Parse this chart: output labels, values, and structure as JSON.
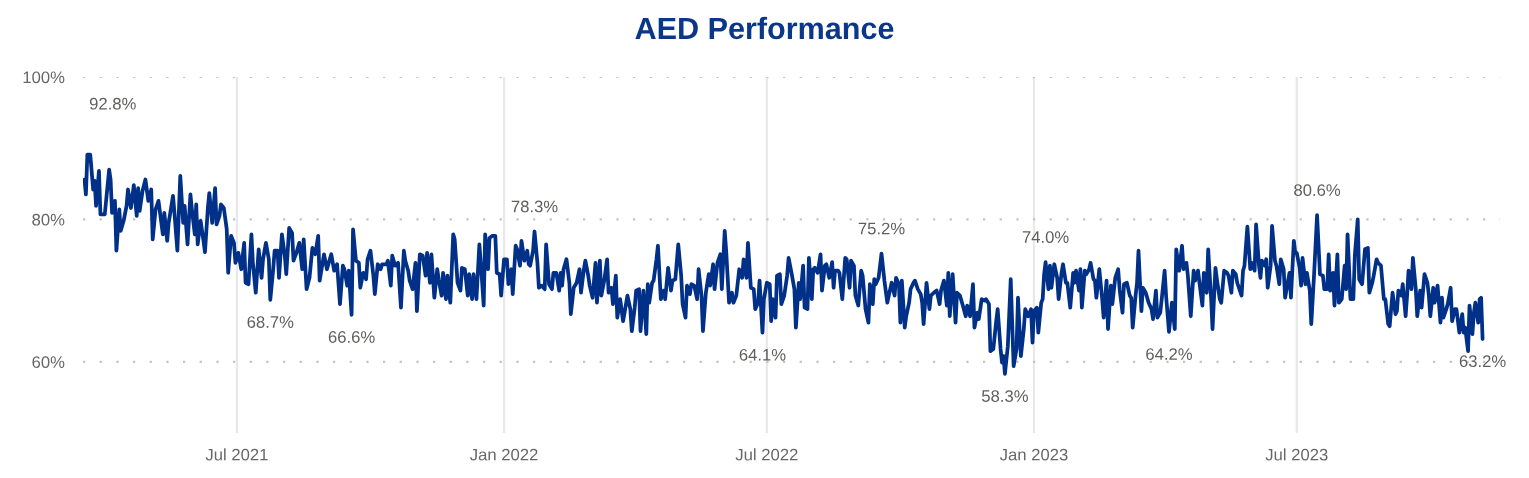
{
  "chart_data": {
    "type": "line",
    "title": "AED Performance",
    "x": [
      "2021-03-18",
      "2021-03-19",
      "2021-03-20",
      "2021-03-22",
      "2021-03-24",
      "2021-03-25",
      "2021-03-26",
      "2021-03-28",
      "2021-03-29",
      "2021-04-01",
      "2021-04-04",
      "2021-04-05",
      "2021-04-06",
      "2021-04-08",
      "2021-04-09",
      "2021-04-11",
      "2021-04-12",
      "2021-04-14",
      "2021-04-16",
      "2021-04-17",
      "2021-04-19",
      "2021-04-21",
      "2021-04-23",
      "2021-04-24",
      "2021-04-25",
      "2021-04-27",
      "2021-04-29",
      "2021-05-01",
      "2021-05-03",
      "2021-05-04",
      "2021-05-06",
      "2021-05-08",
      "2021-05-11",
      "2021-05-12",
      "2021-05-14",
      "2021-05-15",
      "2021-05-18",
      "2021-05-19",
      "2021-05-21",
      "2021-05-23",
      "2021-05-25",
      "2021-05-26",
      "2021-05-28",
      "2021-05-30",
      "2021-05-31",
      "2021-06-02",
      "2021-06-03",
      "2021-06-04",
      "2021-06-06",
      "2021-06-08",
      "2021-06-09",
      "2021-06-11",
      "2021-06-12",
      "2021-06-14",
      "2021-06-16",
      "2021-06-17",
      "2021-06-19",
      "2021-06-20",
      "2021-06-22",
      "2021-06-24",
      "2021-06-25",
      "2021-06-27",
      "2021-06-29",
      "2021-06-30",
      "2021-07-02",
      "2021-07-04",
      "2021-07-06",
      "2021-07-07",
      "2021-07-09",
      "2021-07-11",
      "2021-07-12",
      "2021-07-14",
      "2021-07-16",
      "2021-07-18",
      "2021-07-19",
      "2021-07-21",
      "2021-07-23",
      "2021-07-24",
      "2021-07-26",
      "2021-07-27",
      "2021-07-29",
      "2021-07-30",
      "2021-08-01",
      "2021-08-03",
      "2021-08-04",
      "2021-08-06",
      "2021-08-08",
      "2021-08-09",
      "2021-08-11",
      "2021-08-13",
      "2021-08-15",
      "2021-08-16",
      "2021-08-18",
      "2021-08-20",
      "2021-08-22",
      "2021-08-24",
      "2021-08-26",
      "2021-08-27",
      "2021-08-30",
      "2021-09-01",
      "2021-09-03",
      "2021-09-04",
      "2021-09-06",
      "2021-09-08",
      "2021-09-10",
      "2021-09-12",
      "2021-09-13",
      "2021-09-15",
      "2021-09-16",
      "2021-09-18",
      "2021-09-19",
      "2021-09-21",
      "2021-09-23",
      "2021-09-24",
      "2021-09-26",
      "2021-09-28",
      "2021-09-29",
      "2021-10-01",
      "2021-10-03",
      "2021-10-04",
      "2021-10-06",
      "2021-10-08",
      "2021-10-09",
      "2021-10-12",
      "2021-10-13",
      "2021-10-15",
      "2021-10-16",
      "2021-10-18",
      "2021-10-20",
      "2021-10-22",
      "2021-10-24",
      "2021-10-25",
      "2021-10-27",
      "2021-10-28",
      "2021-10-30",
      "2021-11-01",
      "2021-11-02",
      "2021-11-04",
      "2021-11-06",
      "2021-11-08",
      "2021-11-09",
      "2021-11-11",
      "2021-11-12",
      "2021-11-14",
      "2021-11-16",
      "2021-11-17",
      "2021-11-19",
      "2021-11-20",
      "2021-11-22",
      "2021-11-23",
      "2021-11-25",
      "2021-11-27",
      "2021-11-28",
      "2021-11-30",
      "2021-12-02",
      "2021-12-03",
      "2021-12-05",
      "2021-12-07",
      "2021-12-08",
      "2021-12-10",
      "2021-12-11",
      "2021-12-13",
      "2021-12-15",
      "2021-12-16",
      "2021-12-18",
      "2021-12-19",
      "2021-12-21",
      "2021-12-22",
      "2021-12-24",
      "2021-12-26",
      "2021-12-27",
      "2021-12-29",
      "2021-12-30",
      "2022-01-01",
      "2022-01-03",
      "2022-01-04",
      "2022-01-06",
      "2022-01-07",
      "2022-01-09",
      "2022-01-10",
      "2022-01-12",
      "2022-01-13",
      "2022-01-15",
      "2022-01-17",
      "2022-01-18",
      "2022-01-19",
      "2022-01-21",
      "2022-01-22",
      "2022-01-24",
      "2022-01-25",
      "2022-01-27",
      "2022-01-29",
      "2022-01-30",
      "2022-02-01",
      "2022-02-03",
      "2022-02-04",
      "2022-02-06",
      "2022-02-08",
      "2022-02-09",
      "2022-02-10",
      "2022-02-11",
      "2022-02-13",
      "2022-02-15",
      "2022-02-16",
      "2022-02-18",
      "2022-02-20",
      "2022-02-22",
      "2022-02-23",
      "2022-02-25",
      "2022-02-26",
      "2022-02-28",
      "2022-03-01",
      "2022-03-03",
      "2022-03-05",
      "2022-03-06",
      "2022-03-08",
      "2022-03-09",
      "2022-03-11",
      "2022-03-13",
      "2022-03-14",
      "2022-03-16",
      "2022-03-17",
      "2022-03-19",
      "2022-03-20",
      "2022-03-22",
      "2022-03-24",
      "2022-03-25",
      "2022-03-27",
      "2022-03-29",
      "2022-03-30",
      "2022-04-01",
      "2022-04-02",
      "2022-04-04",
      "2022-04-05",
      "2022-04-07",
      "2022-04-09",
      "2022-04-10",
      "2022-04-11",
      "2022-04-13",
      "2022-04-14",
      "2022-04-16",
      "2022-04-17",
      "2022-04-19",
      "2022-04-21",
      "2022-04-22",
      "2022-04-24",
      "2022-04-26",
      "2022-04-27",
      "2022-04-29",
      "2022-05-01",
      "2022-05-03",
      "2022-05-04",
      "2022-05-06",
      "2022-05-07",
      "2022-05-09",
      "2022-05-10",
      "2022-05-12",
      "2022-05-14",
      "2022-05-15",
      "2022-05-17",
      "2022-05-18",
      "2022-05-20",
      "2022-05-22",
      "2022-05-23",
      "2022-05-25",
      "2022-05-26",
      "2022-05-28",
      "2022-05-30",
      "2022-05-31",
      "2022-06-02",
      "2022-06-03",
      "2022-06-05",
      "2022-06-07",
      "2022-06-08",
      "2022-06-10",
      "2022-06-12",
      "2022-06-14",
      "2022-06-15",
      "2022-06-17",
      "2022-06-18",
      "2022-06-20",
      "2022-06-22",
      "2022-06-23",
      "2022-06-25",
      "2022-06-26",
      "2022-06-28",
      "2022-06-29",
      "2022-07-01",
      "2022-07-03",
      "2022-07-04",
      "2022-07-05",
      "2022-07-07",
      "2022-07-08",
      "2022-07-10",
      "2022-07-11",
      "2022-07-13",
      "2022-07-15",
      "2022-07-16",
      "2022-07-18",
      "2022-07-20",
      "2022-07-21",
      "2022-07-23",
      "2022-07-24",
      "2022-07-26",
      "2022-07-27",
      "2022-07-29",
      "2022-07-30",
      "2022-08-01",
      "2022-08-02",
      "2022-08-03",
      "2022-08-05",
      "2022-08-07",
      "2022-08-08",
      "2022-08-10",
      "2022-08-11",
      "2022-08-13",
      "2022-08-15",
      "2022-08-16",
      "2022-08-17",
      "2022-08-19",
      "2022-08-20",
      "2022-08-22",
      "2022-08-24",
      "2022-08-25",
      "2022-08-27",
      "2022-08-28",
      "2022-08-30",
      "2022-08-31",
      "2022-09-02",
      "2022-09-04",
      "2022-09-05",
      "2022-09-07",
      "2022-09-09",
      "2022-09-10",
      "2022-09-12",
      "2022-09-13",
      "2022-09-14",
      "2022-09-16",
      "2022-09-17",
      "2022-09-18",
      "2022-09-20",
      "2022-09-22",
      "2022-09-23",
      "2022-09-25",
      "2022-09-27",
      "2022-09-28",
      "2022-09-30",
      "2022-10-01",
      "2022-10-02",
      "2022-10-04",
      "2022-10-05",
      "2022-10-07",
      "2022-10-08",
      "2022-10-10",
      "2022-10-11",
      "2022-10-13",
      "2022-10-15",
      "2022-10-16",
      "2022-10-17",
      "2022-10-19",
      "2022-10-21",
      "2022-10-22",
      "2022-10-24",
      "2022-10-26",
      "2022-10-28",
      "2022-10-29",
      "2022-10-31",
      "2022-11-02",
      "2022-11-03",
      "2022-11-04",
      "2022-11-06",
      "2022-11-08",
      "2022-11-09",
      "2022-11-11",
      "2022-11-12",
      "2022-11-13",
      "2022-11-15",
      "2022-11-16",
      "2022-11-18",
      "2022-11-20",
      "2022-11-21",
      "2022-11-23",
      "2022-11-24",
      "2022-11-26",
      "2022-11-28",
      "2022-11-29",
      "2022-12-01",
      "2022-12-02",
      "2022-12-04",
      "2022-12-06",
      "2022-12-07",
      "2022-12-09",
      "2022-12-10",
      "2022-12-11",
      "2022-12-12",
      "2022-12-14",
      "2022-12-16",
      "2022-12-17",
      "2022-12-18",
      "2022-12-20",
      "2022-12-21",
      "2022-12-23",
      "2022-12-25",
      "2022-12-26",
      "2022-12-28",
      "2022-12-30",
      "2022-12-31",
      "2023-01-01",
      "2023-01-03",
      "2023-01-04",
      "2023-01-06",
      "2023-01-07",
      "2023-01-08",
      "2023-01-09",
      "2023-01-11",
      "2023-01-12",
      "2023-01-13",
      "2023-01-15",
      "2023-01-17",
      "2023-01-18",
      "2023-01-20",
      "2023-01-21",
      "2023-01-23",
      "2023-01-24",
      "2023-01-26",
      "2023-01-28",
      "2023-01-29",
      "2023-01-30",
      "2023-02-01",
      "2023-02-02",
      "2023-02-03",
      "2023-02-05",
      "2023-02-06",
      "2023-02-08",
      "2023-02-09",
      "2023-02-11",
      "2023-02-12",
      "2023-02-13",
      "2023-02-15",
      "2023-02-17",
      "2023-02-18",
      "2023-02-20",
      "2023-02-21",
      "2023-02-23",
      "2023-02-24",
      "2023-02-26",
      "2023-02-28",
      "2023-03-01",
      "2023-03-03",
      "2023-03-04",
      "2023-03-06",
      "2023-03-08",
      "2023-03-09",
      "2023-03-10",
      "2023-03-12",
      "2023-03-13",
      "2023-03-14",
      "2023-03-16",
      "2023-03-17",
      "2023-03-19",
      "2023-03-21",
      "2023-03-23",
      "2023-03-24",
      "2023-03-26",
      "2023-03-27",
      "2023-03-29",
      "2023-03-30",
      "2023-04-01",
      "2023-04-02",
      "2023-04-04",
      "2023-04-06",
      "2023-04-08",
      "2023-04-09",
      "2023-04-11",
      "2023-04-13",
      "2023-04-14",
      "2023-04-16",
      "2023-04-17",
      "2023-04-19",
      "2023-04-21",
      "2023-04-22",
      "2023-04-24",
      "2023-04-25",
      "2023-04-27",
      "2023-04-28",
      "2023-04-30",
      "2023-05-01",
      "2023-05-03",
      "2023-05-04",
      "2023-05-06",
      "2023-05-07",
      "2023-05-09",
      "2023-05-10",
      "2023-05-12",
      "2023-05-14",
      "2023-05-15",
      "2023-05-17",
      "2023-05-18",
      "2023-05-20",
      "2023-05-21",
      "2023-05-24",
      "2023-05-25",
      "2023-05-26",
      "2023-05-28",
      "2023-05-30",
      "2023-05-31",
      "2023-06-02",
      "2023-06-03",
      "2023-06-05",
      "2023-06-06",
      "2023-06-07",
      "2023-06-09",
      "2023-06-10",
      "2023-06-11",
      "2023-06-13",
      "2023-06-14",
      "2023-06-16",
      "2023-06-17",
      "2023-06-19",
      "2023-06-20",
      "2023-06-22",
      "2023-06-23",
      "2023-06-26",
      "2023-06-27",
      "2023-06-29",
      "2023-06-30",
      "2023-07-01",
      "2023-07-03",
      "2023-07-04",
      "2023-07-05",
      "2023-07-07",
      "2023-07-08",
      "2023-07-10",
      "2023-07-11",
      "2023-07-13",
      "2023-07-15",
      "2023-07-17",
      "2023-07-19",
      "2023-07-20",
      "2023-07-22",
      "2023-07-23",
      "2023-07-24",
      "2023-07-26",
      "2023-07-27",
      "2023-07-29",
      "2023-07-30",
      "2023-08-01",
      "2023-08-03",
      "2023-08-04",
      "2023-08-05",
      "2023-08-07",
      "2023-08-09",
      "2023-08-10",
      "2023-08-12",
      "2023-08-13",
      "2023-08-15",
      "2023-08-17",
      "2023-08-19",
      "2023-08-20",
      "2023-08-22",
      "2023-08-23",
      "2023-08-25",
      "2023-08-26",
      "2023-08-28",
      "2023-08-30",
      "2023-08-31",
      "2023-09-02",
      "2023-09-03",
      "2023-09-05",
      "2023-09-07",
      "2023-09-08",
      "2023-09-09",
      "2023-09-11",
      "2023-09-12",
      "2023-09-14",
      "2023-09-15",
      "2023-09-16",
      "2023-09-18",
      "2023-09-19",
      "2023-09-21",
      "2023-09-22",
      "2023-09-24",
      "2023-09-25",
      "2023-09-27",
      "2023-09-29",
      "2023-09-30",
      "2023-10-01",
      "2023-10-03",
      "2023-10-04",
      "2023-10-06",
      "2023-10-08",
      "2023-10-09",
      "2023-10-10",
      "2023-10-12",
      "2023-10-13",
      "2023-10-15",
      "2023-10-16",
      "2023-10-18",
      "2023-10-19",
      "2023-10-21",
      "2023-10-23",
      "2023-10-24",
      "2023-10-25",
      "2023-10-27",
      "2023-10-28",
      "2023-10-30",
      "2023-10-31",
      "2023-11-01",
      "2023-11-03",
      "2023-11-04",
      "2023-11-05",
      "2023-11-06"
    ],
    "series": [
      {
        "color": "#003087",
        "values": [
          85.6,
          83.5,
          89.1,
          89.1,
          84.2,
          85.4,
          81.9,
          86.8,
          80.7,
          80.7,
          87.0,
          85.6,
          80.9,
          82.6,
          75.6,
          81.4,
          78.4,
          79.8,
          81.9,
          84.2,
          81.6,
          84.8,
          80.5,
          84.4,
          81.2,
          84.0,
          85.6,
          82.6,
          84.2,
          77.2,
          81.4,
          82.6,
          77.9,
          80.9,
          77.0,
          79.5,
          83.3,
          80.9,
          75.6,
          86.1,
          79.5,
          81.9,
          76.5,
          83.5,
          81.4,
          77.9,
          82.1,
          76.5,
          79.8,
          77.0,
          75.4,
          81.6,
          83.7,
          79.5,
          84.4,
          79.3,
          80.5,
          82.1,
          81.6,
          78.6,
          72.5,
          77.7,
          76.7,
          73.9,
          75.3,
          73.0,
          76.7,
          71.1,
          70.9,
          77.9,
          73.9,
          69.7,
          75.8,
          71.8,
          74.4,
          76.7,
          74.4,
          68.7,
          73.0,
          75.6,
          75.6,
          71.8,
          77.9,
          74.9,
          72.3,
          78.8,
          78.1,
          74.2,
          75.3,
          76.7,
          73.0,
          77.2,
          70.2,
          71.8,
          76.0,
          75.1,
          77.7,
          71.4,
          75.1,
          73.0,
          74.4,
          75.1,
          72.8,
          73.7,
          68.1,
          73.5,
          73.0,
          70.7,
          72.8,
          66.6,
          78.6,
          74.2,
          73.9,
          70.4,
          72.5,
          71.6,
          74.4,
          75.6,
          72.1,
          69.5,
          73.7,
          73.0,
          73.7,
          73.7,
          74.2,
          70.7,
          74.9,
          73.5,
          73.9,
          67.6,
          75.6,
          74.2,
          72.8,
          71.4,
          70.2,
          73.9,
          67.1,
          75.1,
          74.9,
          72.1,
          75.3,
          71.1,
          75.1,
          69.0,
          73.0,
          71.6,
          69.3,
          72.5,
          68.8,
          72.1,
          68.3,
          77.9,
          77.2,
          71.1,
          70.0,
          73.2,
          73.0,
          69.3,
          72.3,
          68.8,
          72.3,
          68.8,
          76.5,
          73.9,
          67.9,
          77.9,
          73.0,
          77.4,
          77.7,
          77.7,
          72.5,
          72.3,
          69.3,
          74.4,
          74.4,
          70.9,
          73.0,
          69.5,
          76.3,
          75.8,
          73.5,
          77.0,
          74.2,
          75.6,
          73.7,
          73.5,
          75.6,
          78.3,
          73.9,
          70.4,
          70.7,
          70.2,
          76.5,
          70.9,
          70.2,
          72.5,
          72.5,
          70.0,
          72.5,
          70.7,
          73.0,
          74.4,
          71.1,
          66.7,
          70.4,
          71.1,
          73.0,
          69.7,
          73.0,
          74.2,
          72.1,
          70.7,
          69.0,
          73.9,
          68.3,
          74.2,
          69.3,
          71.4,
          74.4,
          69.7,
          70.4,
          68.1,
          72.1,
          66.2,
          68.8,
          65.7,
          66.9,
          69.3,
          67.4,
          64.3,
          67.6,
          70.0,
          70.2,
          64.3,
          70.0,
          63.9,
          70.9,
          68.3,
          71.1,
          71.4,
          74.4,
          76.3,
          68.8,
          70.0,
          68.8,
          73.2,
          70.0,
          71.4,
          71.6,
          76.5,
          72.1,
          68.1,
          66.2,
          70.7,
          69.5,
          70.9,
          70.7,
          68.8,
          73.0,
          69.3,
          64.3,
          69.7,
          72.3,
          70.7,
          73.7,
          70.2,
          73.9,
          75.1,
          70.2,
          78.4,
          75.6,
          68.3,
          69.7,
          68.3,
          69.3,
          73.0,
          71.8,
          74.4,
          71.8,
          76.7,
          70.4,
          70.2,
          67.4,
          68.3,
          71.4,
          64.1,
          68.8,
          71.1,
          70.9,
          65.7,
          68.8,
          66.2,
          72.1,
          72.3,
          68.1,
          69.3,
          72.1,
          74.6,
          72.5,
          70.2,
          64.8,
          71.1,
          68.8,
          73.5,
          67.6,
          67.4,
          74.6,
          68.8,
          73.0,
          73.2,
          72.5,
          75.1,
          70.0,
          73.5,
          73.7,
          71.8,
          74.0,
          70.4,
          72.8,
          72.8,
          72.5,
          68.8,
          74.6,
          74.4,
          70.4,
          74.2,
          73.5,
          69.3,
          67.9,
          72.8,
          72.1,
          67.4,
          65.5,
          70.9,
          68.1,
          71.6,
          70.9,
          71.8,
          73.5,
          75.2,
          71.4,
          68.3,
          69.3,
          71.1,
          69.3,
          71.8,
          70.9,
          65.5,
          71.4,
          64.8,
          66.4,
          68.3,
          70.2,
          71.1,
          71.4,
          70.2,
          69.5,
          68.3,
          65.3,
          71.1,
          67.4,
          69.3,
          69.7,
          70.0,
          68.1,
          70.0,
          71.4,
          67.9,
          72.5,
          66.4,
          72.3,
          65.5,
          69.7,
          69.3,
          68.6,
          67.9,
          66.4,
          67.9,
          66.4,
          70.9,
          64.8,
          66.9,
          66.0,
          68.8,
          68.6,
          68.8,
          68.1,
          61.5,
          61.8,
          65.7,
          67.4,
          61.8,
          59.9,
          60.8,
          58.3,
          62.2,
          71.6,
          65.5,
          59.4,
          61.8,
          69.0,
          60.8,
          64.6,
          67.4,
          66.4,
          67.4,
          62.7,
          67.1,
          67.6,
          64.1,
          68.3,
          68.8,
          72.3,
          74.0,
          70.2,
          73.5,
          70.4,
          73.7,
          71.8,
          68.8,
          72.5,
          73.7,
          71.1,
          71.1,
          67.6,
          72.5,
          71.1,
          72.8,
          70.0,
          73.0,
          67.6,
          72.8,
          72.3,
          73.0,
          73.9,
          71.6,
          71.4,
          69.0,
          73.0,
          68.8,
          66.2,
          71.4,
          64.6,
          70.7,
          68.1,
          71.8,
          73.0,
          70.2,
          66.9,
          70.9,
          71.1,
          69.3,
          69.0,
          64.8,
          69.3,
          71.1,
          75.6,
          67.1,
          70.4,
          69.7,
          68.3,
          67.4,
          66.0,
          70.0,
          66.2,
          66.9,
          68.8,
          72.8,
          69.3,
          64.2,
          68.3,
          64.6,
          75.8,
          72.8,
          76.3,
          73.0,
          73.9,
          72.1,
          66.4,
          72.8,
          71.4,
          72.8,
          71.1,
          67.9,
          72.5,
          69.7,
          75.8,
          69.0,
          64.6,
          73.2,
          71.6,
          68.8,
          68.3,
          72.8,
          72.5,
          72.1,
          69.7,
          72.8,
          72.3,
          71.1,
          69.3,
          72.8,
          73.5,
          79.0,
          73.0,
          73.9,
          72.8,
          79.3,
          73.5,
          71.8,
          74.2,
          73.5,
          74.4,
          70.4,
          73.5,
          79.1,
          74.2,
          73.5,
          70.9,
          74.4,
          73.0,
          69.0,
          72.5,
          69.0,
          77.0,
          75.3,
          75.3,
          73.2,
          70.7,
          74.6,
          70.9,
          72.5,
          70.0,
          65.3,
          72.5,
          80.6,
          72.3,
          72.1,
          70.2,
          70.2,
          75.1,
          70.0,
          72.5,
          67.9,
          75.1,
          68.3,
          68.8,
          73.5,
          70.2,
          77.9,
          68.8,
          68.8,
          74.9,
          80.0,
          71.6,
          70.9,
          75.8,
          76.0,
          69.7,
          71.1,
          72.1,
          74.4,
          73.9,
          73.5,
          68.8,
          68.8,
          65.3,
          65.0,
          69.7,
          66.7,
          67.1,
          70.0,
          69.3,
          70.9,
          66.4,
          69.3,
          72.8,
          70.2,
          74.6,
          70.2,
          66.4,
          70.0,
          67.6,
          72.3,
          71.1,
          69.3,
          66.4,
          70.4,
          68.3,
          70.7,
          65.5,
          69.0,
          66.2,
          67.4,
          68.1,
          70.4,
          65.7,
          67.4,
          67.4,
          64.1,
          66.7,
          64.1,
          64.8,
          61.5,
          67.9,
          63.9,
          66.9,
          68.3,
          65.5,
          68.8,
          69.0,
          63.2
        ]
      }
    ],
    "xlim": [
      "2021-03-17",
      "2023-11-18"
    ],
    "ylim": [
      50,
      100
    ],
    "xticks": [
      {
        "value": "2021-07-01",
        "label": "Jul 2021"
      },
      {
        "value": "2022-01-01",
        "label": "Jan 2022"
      },
      {
        "value": "2022-07-01",
        "label": "Jul 2022"
      },
      {
        "value": "2023-01-01",
        "label": "Jan 2023"
      },
      {
        "value": "2023-07-01",
        "label": "Jul 2023"
      }
    ],
    "yticks": [
      {
        "value": 60,
        "label": "60%"
      },
      {
        "value": 80,
        "label": "80%"
      },
      {
        "value": 100,
        "label": "100%"
      }
    ],
    "grid": true,
    "annotations": [
      "92.8%",
      {
        "text": "68.7%",
        "x": "2021-07-24",
        "y": 68.7
      },
      {
        "text": "66.6%",
        "x": "2021-09-18",
        "y": 66.6
      },
      {
        "text": "78.3%",
        "x": "2022-01-22",
        "y": 78.3
      },
      {
        "text": "64.1%",
        "x": "2022-06-28",
        "y": 64.1
      },
      {
        "text": "75.2%",
        "x": "2022-09-18",
        "y": 75.2
      },
      {
        "text": "58.3%",
        "x": "2022-12-12",
        "y": 58.3
      },
      {
        "text": "74.0%",
        "x": "2023-01-09",
        "y": 74.0
      },
      {
        "text": "64.2%",
        "x": "2023-04-04",
        "y": 64.2
      },
      {
        "text": "80.6%",
        "x": "2023-07-15",
        "y": 80.6
      },
      {
        "text": "63.2%",
        "x": "2023-11-06",
        "y": 63.2
      }
    ]
  }
}
